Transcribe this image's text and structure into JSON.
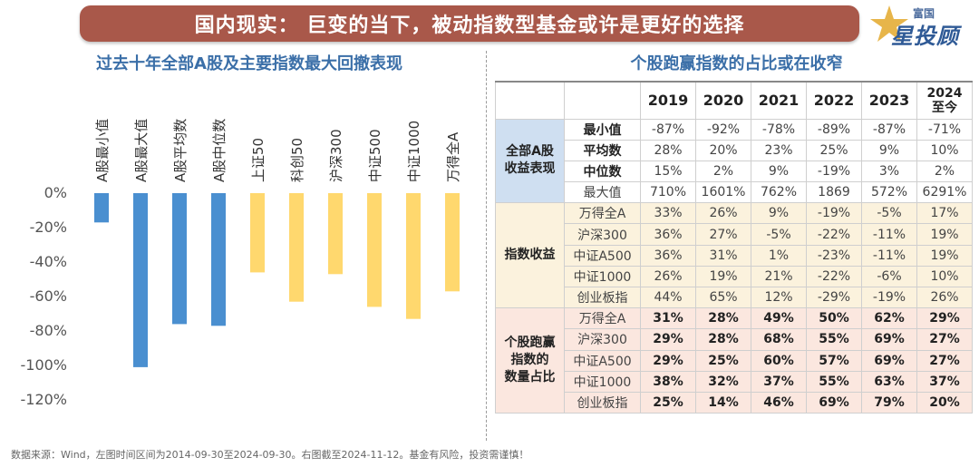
{
  "header": {
    "banner_text": "国内现实：  巨变的当下，被动指数型基金或许是更好的选择",
    "logo_small": "富国",
    "logo_main": "星投顾"
  },
  "left_title": "过去十年全部A股及主要指数最大回撤表现",
  "right_title": "个股跑赢指数的占比或在收窄",
  "colors": {
    "blue": "#4a8fd0",
    "yellow": "#ffd86e",
    "table_group1": "#cfdff1",
    "table_group2": "#fbf2dd",
    "table_group3": "#fbe7df"
  },
  "chart_data": {
    "type": "bar",
    "title": "过去十年全部A股及主要指数最大回撤表现",
    "categories": [
      "A股最小值",
      "A股最大值",
      "A股平均数",
      "A股中位数",
      "上证50",
      "科创50",
      "沪深300",
      "中证500",
      "中证1000",
      "万得全A"
    ],
    "values": [
      -17,
      -101,
      -76,
      -77,
      -46,
      -63,
      -47,
      -66,
      -73,
      -57
    ],
    "bar_colors": [
      "#4a8fd0",
      "#4a8fd0",
      "#4a8fd0",
      "#4a8fd0",
      "#ffd86e",
      "#ffd86e",
      "#ffd86e",
      "#ffd86e",
      "#ffd86e",
      "#ffd86e"
    ],
    "y_ticks": [
      "0%",
      "-20%",
      "-40%",
      "-60%",
      "-80%",
      "-100%",
      "-120%"
    ],
    "ylim": [
      -120,
      0
    ],
    "grid": false
  },
  "table": {
    "years": [
      "2019",
      "2020",
      "2021",
      "2022",
      "2023",
      "2024\n至今"
    ],
    "groups": [
      {
        "name": "全部A股\n收益表现",
        "rows": [
          {
            "label": "最小值",
            "values": [
              "-87%",
              "-92%",
              "-78%",
              "-89%",
              "-87%",
              "-71%"
            ]
          },
          {
            "label": "平均数",
            "values": [
              "28%",
              "20%",
              "23%",
              "25%",
              "9%",
              "10%"
            ]
          },
          {
            "label": "中位数",
            "values": [
              "15%",
              "2%",
              "9%",
              "-19%",
              "3%",
              "2%"
            ]
          },
          {
            "label": "最大值",
            "values": [
              "710%",
              "1601%",
              "762%",
              "1869",
              "572%",
              "6291%"
            ]
          }
        ]
      },
      {
        "name": "指数收益",
        "rows": [
          {
            "label": "万得全A",
            "values": [
              "33%",
              "26%",
              "9%",
              "-19%",
              "-5%",
              "17%"
            ]
          },
          {
            "label": "沪深300",
            "values": [
              "36%",
              "27%",
              "-5%",
              "-22%",
              "-11%",
              "19%"
            ]
          },
          {
            "label": "中证A500",
            "values": [
              "36%",
              "31%",
              "1%",
              "-23%",
              "-11%",
              "19%"
            ]
          },
          {
            "label": "中证1000",
            "values": [
              "26%",
              "19%",
              "21%",
              "-22%",
              "-6%",
              "10%"
            ]
          },
          {
            "label": "创业板指",
            "values": [
              "44%",
              "65%",
              "12%",
              "-29%",
              "-19%",
              "26%"
            ]
          }
        ]
      },
      {
        "name": "个股跑赢\n指数的\n数量占比",
        "rows": [
          {
            "label": "万得全A",
            "values": [
              "31%",
              "28%",
              "49%",
              "50%",
              "62%",
              "29%"
            ]
          },
          {
            "label": "沪深300",
            "values": [
              "29%",
              "28%",
              "68%",
              "55%",
              "69%",
              "27%"
            ]
          },
          {
            "label": "中证A500",
            "values": [
              "29%",
              "25%",
              "60%",
              "57%",
              "69%",
              "27%"
            ]
          },
          {
            "label": "中证1000",
            "values": [
              "38%",
              "32%",
              "37%",
              "55%",
              "63%",
              "37%"
            ]
          },
          {
            "label": "创业板指",
            "values": [
              "25%",
              "14%",
              "46%",
              "69%",
              "79%",
              "20%"
            ]
          }
        ]
      }
    ]
  },
  "source": "数据来源：Wind，左图时间区间为2014-09-30至2024-09-30。右图截至2024-11-12。基金有风险，投资需谨慎！"
}
